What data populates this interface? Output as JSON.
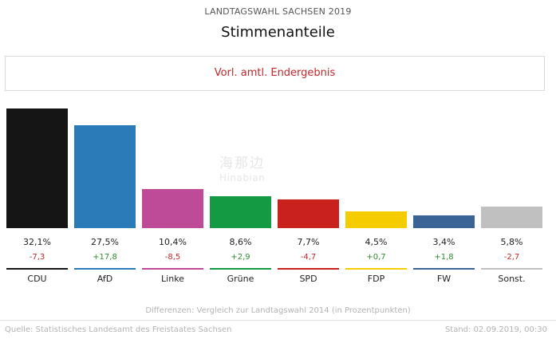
{
  "header": {
    "supertitle": "LANDTAGSWAHL SACHSEN 2019",
    "title": "Stimmenanteile"
  },
  "status": {
    "text": "Vorl. amtl. Endergebnis",
    "color": "#c1272d"
  },
  "watermark": {
    "text": "海那边",
    "sub": "Hinabian"
  },
  "chart_data": {
    "type": "bar",
    "title": "Stimmenanteile",
    "unit": "%",
    "ylim": [
      0,
      32.1
    ],
    "categories": [
      "CDU",
      "AfD",
      "Linke",
      "Grüne",
      "SPD",
      "FDP",
      "FW",
      "Sonst."
    ],
    "values": [
      32.1,
      27.5,
      10.4,
      8.6,
      7.7,
      4.5,
      3.4,
      5.8
    ],
    "value_labels": [
      "32,1%",
      "27,5%",
      "10,4%",
      "8,6%",
      "7,7%",
      "4,5%",
      "3,4%",
      "5,8%"
    ],
    "diffs": [
      -7.3,
      17.8,
      -8.5,
      2.9,
      -4.7,
      0.7,
      1.8,
      -2.7
    ],
    "diff_labels": [
      "-7,3",
      "+17,8",
      "-8,5",
      "+2,9",
      "-4,7",
      "+0,7",
      "+1,8",
      "-2,7"
    ],
    "colors": [
      "#151515",
      "#2b7bb9",
      "#be4b97",
      "#139a43",
      "#c9211e",
      "#f5cc00",
      "#3a6496",
      "#c0c0c0"
    ],
    "positive_color": "#2f8a2f",
    "negative_color": "#c1272d"
  },
  "footnote": "Differenzen: Vergleich zur Landtagswahl 2014 (in Prozentpunkten)",
  "footer": {
    "source": "Quelle: Statistisches Landesamt des Freistaates Sachsen",
    "stand": "Stand: 02.09.2019, 00:30"
  }
}
